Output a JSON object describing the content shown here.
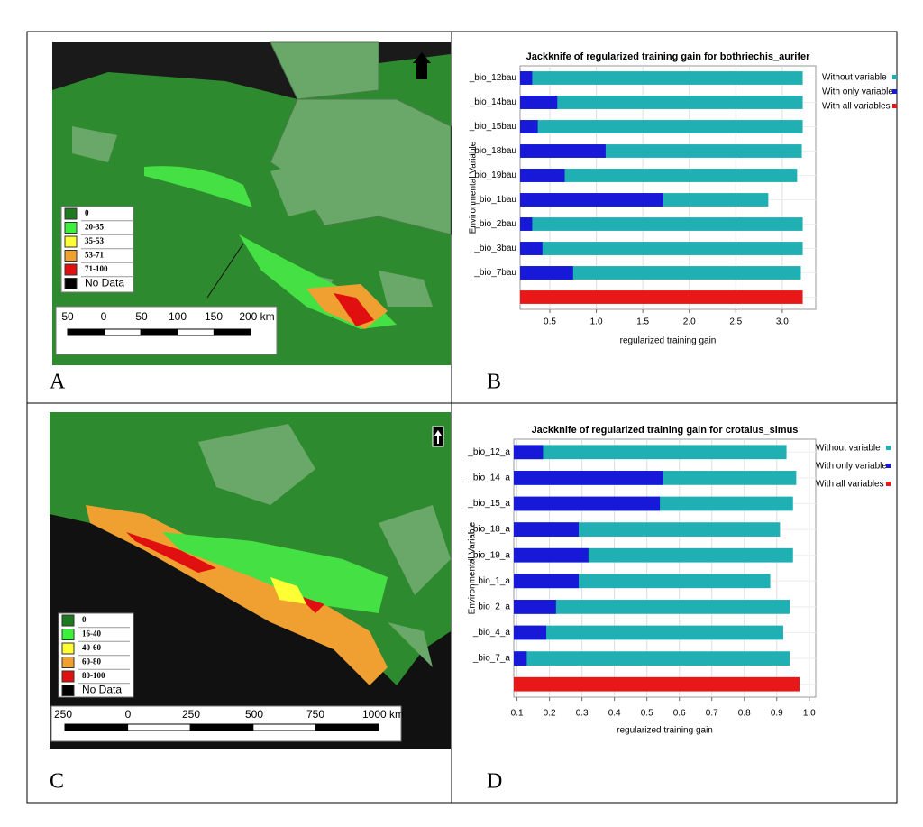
{
  "panel_labels": [
    "A",
    "B",
    "C",
    "D"
  ],
  "maps": [
    {
      "legend": [
        {
          "label": "0",
          "color": "#1e7a1e"
        },
        {
          "label": "20-35",
          "color": "#3cf03c"
        },
        {
          "label": "35-53",
          "color": "#ffff33"
        },
        {
          "label": "53-71",
          "color": "#f0a030"
        },
        {
          "label": "71-100",
          "color": "#e01010"
        },
        {
          "label": "No Data",
          "color": "#000000"
        }
      ],
      "scale_labels": [
        "50",
        "0",
        "50",
        "100",
        "150",
        "200 km"
      ]
    },
    {
      "legend": [
        {
          "label": "0",
          "color": "#1e7a1e"
        },
        {
          "label": "16-40",
          "color": "#3cf03c"
        },
        {
          "label": "40-60",
          "color": "#ffff33"
        },
        {
          "label": "60-80",
          "color": "#f0a030"
        },
        {
          "label": "80-100",
          "color": "#e01010"
        },
        {
          "label": "No Data",
          "color": "#000000"
        }
      ],
      "scale_labels": [
        "250",
        "0",
        "250",
        "500",
        "750",
        "1000 km"
      ]
    }
  ],
  "chart_data": [
    {
      "type": "bar",
      "title": "Jackknife of regularized training gain for bothriechis_aurifer",
      "x_label": "regularized training gain",
      "y_label": "Environmental Variable",
      "categories": [
        "_bio_12bau",
        "_bio_14bau",
        "_bio_15bau",
        "_bio_18bau",
        "_bio_19bau",
        "_bio_1bau",
        "_bio_2bau",
        "_bio_3bau",
        "_bio_7bau",
        null
      ],
      "series": [
        {
          "name": "Without variable",
          "color": "#20b0b4",
          "values": [
            3.22,
            3.22,
            3.22,
            3.21,
            3.16,
            2.85,
            3.22,
            3.22,
            3.2,
            null
          ]
        },
        {
          "name": "With only variable",
          "color": "#1818d8",
          "values": [
            0.31,
            0.58,
            0.37,
            1.1,
            0.66,
            1.72,
            0.31,
            0.42,
            0.75,
            null
          ]
        },
        {
          "name": "With all variables",
          "color": "#e81818",
          "values": [
            null,
            null,
            null,
            null,
            null,
            null,
            null,
            null,
            null,
            3.22
          ]
        }
      ],
      "xlim": [
        0.18,
        3.36
      ],
      "xticks": [
        0.5,
        {
          "value": 1,
          "label": "1.0"
        },
        1.5,
        {
          "value": 2,
          "label": "2.0"
        },
        2.5,
        {
          "value": 3,
          "label": "3.0"
        }
      ],
      "grid": true
    },
    {
      "type": "bar",
      "title": "Jackknife of regularized training gain for crotalus_simus",
      "x_label": "regularized training gain",
      "y_label": "Environmental Variable",
      "categories": [
        "_bio_12_a",
        "_bio_14_a",
        "_bio_15_a",
        "_bio_18_a",
        "_bio_19_a",
        "_bio_1_a",
        "_bio_2_a",
        "_bio_4_a",
        "_bio_7_a",
        null
      ],
      "series": [
        {
          "name": "Without variable",
          "color": "#20b0b4",
          "values": [
            0.93,
            0.96,
            0.95,
            0.91,
            0.95,
            0.88,
            0.94,
            0.92,
            0.94,
            null
          ]
        },
        {
          "name": "With only variable",
          "color": "#1818d8",
          "values": [
            0.18,
            0.55,
            0.54,
            0.29,
            0.32,
            0.29,
            0.22,
            0.19,
            0.13,
            null
          ]
        },
        {
          "name": "With all variables",
          "color": "#e81818",
          "values": [
            null,
            null,
            null,
            null,
            null,
            null,
            null,
            null,
            null,
            0.97
          ]
        }
      ],
      "xlim": [
        0.09,
        1.02
      ],
      "xticks": [
        0.1,
        0.2,
        0.3,
        0.4,
        0.5,
        0.6,
        0.7,
        0.8,
        0.9,
        {
          "value": 1,
          "label": "1.0"
        }
      ],
      "grid": true
    }
  ]
}
